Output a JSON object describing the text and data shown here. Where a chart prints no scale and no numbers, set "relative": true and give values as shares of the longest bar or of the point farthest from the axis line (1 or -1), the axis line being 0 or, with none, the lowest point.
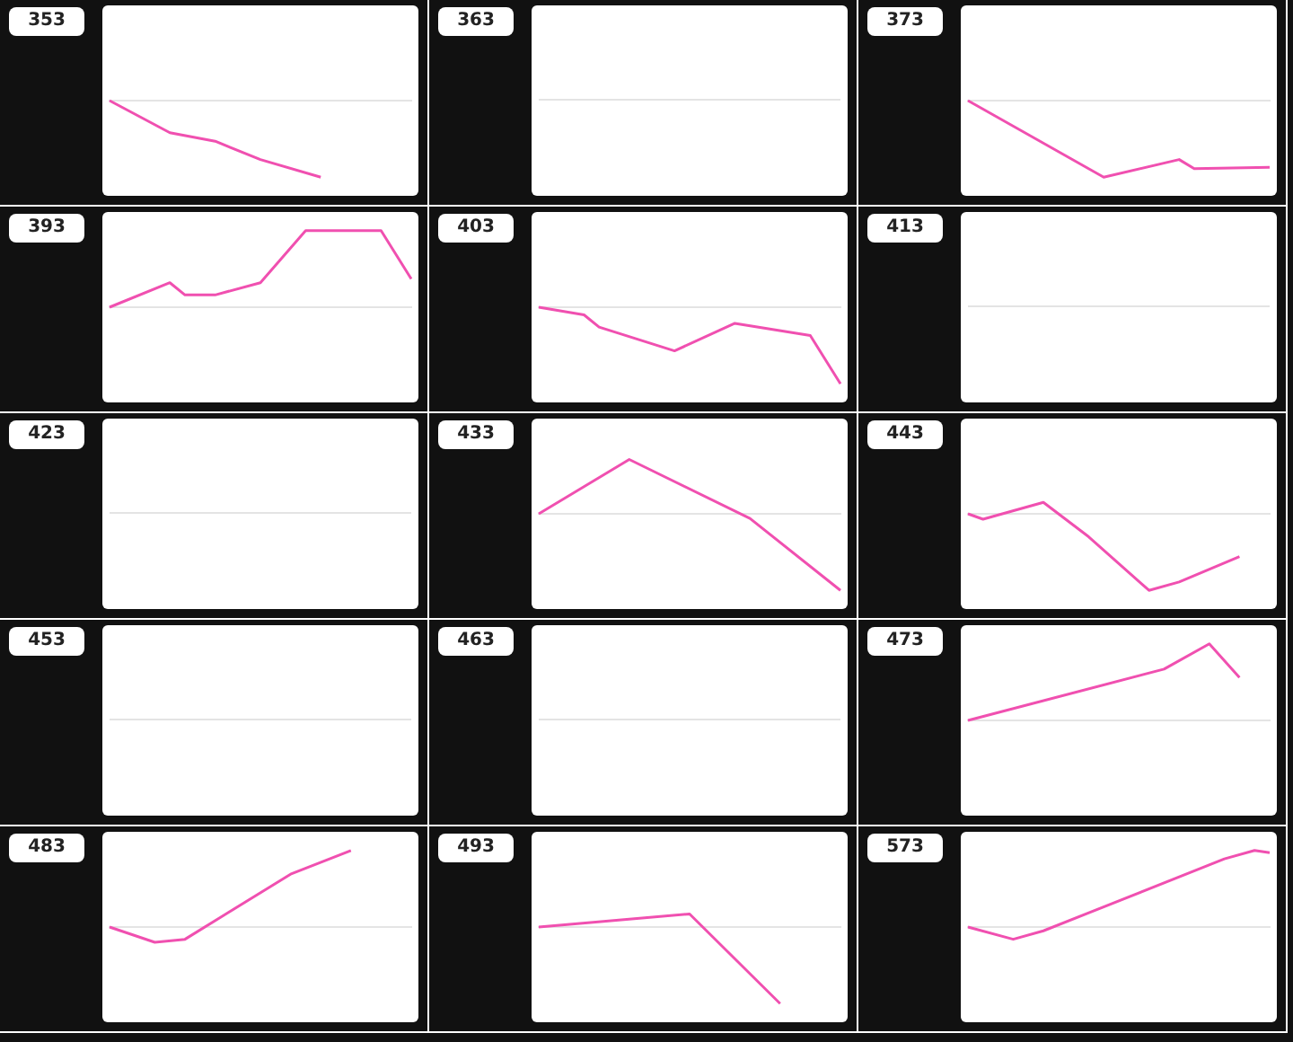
{
  "chart_data": [
    {
      "type": "line",
      "title": "353",
      "relative": true,
      "color": "#f050b0",
      "categories": [
        null,
        null,
        null,
        null,
        null,
        null,
        null,
        null,
        null,
        null,
        null,
        null,
        null,
        null,
        null,
        null,
        null,
        null,
        null,
        null,
        null
      ],
      "values": [
        0,
        null,
        null,
        null,
        -0.42,
        null,
        null,
        -0.53,
        null,
        null,
        -0.77,
        null,
        null,
        null,
        -1,
        null,
        null,
        null,
        null,
        null,
        null
      ]
    },
    {
      "type": "other",
      "title": "363"
    },
    {
      "type": "line",
      "title": "373",
      "relative": true,
      "color": "#f050b0",
      "categories": [
        null,
        null,
        null,
        null,
        null,
        null,
        null,
        null,
        null,
        null,
        null,
        null,
        null,
        null,
        null,
        null,
        null,
        null,
        null,
        null,
        null
      ],
      "values": [
        0,
        null,
        null,
        null,
        null,
        null,
        null,
        null,
        null,
        -1,
        null,
        null,
        null,
        null,
        -0.77,
        -0.89,
        null,
        null,
        null,
        null,
        -0.87
      ]
    },
    {
      "type": "line",
      "title": "393",
      "relative": true,
      "color": "#f050b0",
      "categories": [
        null,
        null,
        null,
        null,
        null,
        null,
        null,
        null,
        null,
        null,
        null,
        null,
        null,
        null,
        null,
        null,
        null,
        null,
        null,
        null,
        null
      ],
      "values": [
        0,
        null,
        null,
        null,
        0.32,
        0.16,
        null,
        0.16,
        null,
        null,
        0.32,
        null,
        null,
        1,
        null,
        null,
        null,
        null,
        1,
        null,
        0.37
      ]
    },
    {
      "type": "line",
      "title": "403",
      "relative": true,
      "color": "#f050b0",
      "categories": [
        null,
        null,
        null,
        null,
        null,
        null,
        null,
        null,
        null,
        null,
        null,
        null,
        null,
        null,
        null,
        null,
        null,
        null,
        null,
        null,
        null
      ],
      "values": [
        0,
        null,
        null,
        -0.1,
        -0.26,
        null,
        null,
        null,
        null,
        -0.57,
        null,
        null,
        null,
        -0.21,
        null,
        null,
        null,
        null,
        -0.37,
        null,
        -1
      ]
    },
    {
      "type": "other",
      "title": "413"
    },
    {
      "type": "other",
      "title": "423"
    },
    {
      "type": "line",
      "title": "433",
      "relative": true,
      "color": "#f050b0",
      "categories": [
        null,
        null,
        null,
        null,
        null,
        null,
        null,
        null,
        null,
        null,
        null,
        null,
        null,
        null,
        null,
        null,
        null,
        null,
        null,
        null,
        null
      ],
      "values": [
        0,
        null,
        null,
        null,
        null,
        null,
        0.71,
        null,
        null,
        null,
        null,
        null,
        null,
        null,
        -0.06,
        null,
        null,
        null,
        null,
        null,
        -1
      ]
    },
    {
      "type": "line",
      "title": "443",
      "relative": true,
      "color": "#f050b0",
      "categories": [
        null,
        null,
        null,
        null,
        null,
        null,
        null,
        null,
        null,
        null,
        null,
        null,
        null,
        null,
        null,
        null,
        null,
        null,
        null,
        null,
        null
      ],
      "values": [
        0,
        -0.07,
        null,
        null,
        null,
        0.15,
        null,
        null,
        -0.3,
        null,
        null,
        null,
        -1,
        null,
        -0.89,
        null,
        null,
        null,
        -0.56,
        null,
        null
      ]
    },
    {
      "type": "other",
      "title": "453"
    },
    {
      "type": "other",
      "title": "463"
    },
    {
      "type": "line",
      "title": "473",
      "relative": true,
      "color": "#f050b0",
      "categories": [
        null,
        null,
        null,
        null,
        null,
        null,
        null,
        null,
        null,
        null,
        null,
        null,
        null,
        null,
        null,
        null,
        null,
        null,
        null,
        null,
        null
      ],
      "values": [
        0,
        null,
        null,
        null,
        null,
        null,
        null,
        null,
        null,
        null,
        null,
        null,
        null,
        0.67,
        null,
        null,
        1,
        null,
        0.56,
        null,
        null
      ]
    },
    {
      "type": "line",
      "title": "483",
      "relative": true,
      "color": "#f050b0",
      "categories": [
        null,
        null,
        null,
        null,
        null,
        null,
        null,
        null,
        null,
        null,
        null,
        null,
        null,
        null,
        null,
        null,
        null,
        null,
        null,
        null,
        null
      ],
      "values": [
        0,
        null,
        null,
        -0.2,
        null,
        -0.16,
        null,
        null,
        null,
        null,
        null,
        null,
        0.69,
        null,
        null,
        null,
        1,
        null,
        null,
        null,
        null
      ]
    },
    {
      "type": "line",
      "title": "493",
      "relative": true,
      "color": "#f050b0",
      "categories": [
        null,
        null,
        null,
        null,
        null,
        null,
        null,
        null,
        null,
        null,
        null,
        null,
        null,
        null,
        null,
        null,
        null,
        null,
        null,
        null,
        null
      ],
      "values": [
        0,
        null,
        null,
        null,
        null,
        null,
        null,
        null,
        null,
        null,
        0.17,
        null,
        null,
        null,
        null,
        null,
        -1,
        null,
        null,
        null,
        null
      ]
    },
    {
      "type": "line",
      "title": "573",
      "relative": true,
      "color": "#f050b0",
      "categories": [
        null,
        null,
        null,
        null,
        null,
        null,
        null,
        null,
        null,
        null,
        null,
        null,
        null,
        null,
        null,
        null,
        null,
        null,
        null,
        null,
        null
      ],
      "values": [
        0,
        null,
        null,
        -0.16,
        null,
        -0.05,
        null,
        null,
        null,
        null,
        null,
        null,
        null,
        null,
        null,
        null,
        null,
        0.89,
        null,
        1,
        0.97
      ]
    }
  ]
}
